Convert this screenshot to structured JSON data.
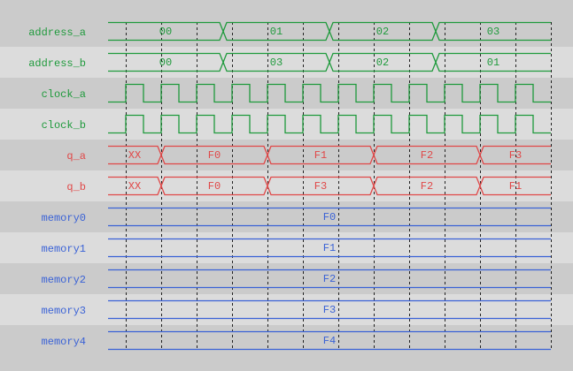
{
  "colors": {
    "band_dark": "#cbcbcb",
    "band_light": "#dcdcdc",
    "grid": "#222222"
  },
  "time": {
    "start": 0,
    "end": 25,
    "gridlines": [
      1,
      3,
      5,
      7,
      9,
      11,
      13,
      15,
      17,
      19,
      21,
      23,
      25
    ]
  },
  "signals": [
    {
      "name": "address_a",
      "type": "bus",
      "color": "#1f9a3c",
      "segments": [
        {
          "from": 0,
          "to": 6.5,
          "value": "00"
        },
        {
          "from": 6.5,
          "to": 12.5,
          "value": "01"
        },
        {
          "from": 12.5,
          "to": 18.5,
          "value": "02"
        },
        {
          "from": 18.5,
          "to": 25,
          "value": "03"
        }
      ]
    },
    {
      "name": "address_b",
      "type": "bus",
      "color": "#1f9a3c",
      "segments": [
        {
          "from": 0,
          "to": 6.5,
          "value": "00"
        },
        {
          "from": 6.5,
          "to": 12.5,
          "value": "03"
        },
        {
          "from": 12.5,
          "to": 18.5,
          "value": "02"
        },
        {
          "from": 18.5,
          "to": 25,
          "value": "01"
        }
      ]
    },
    {
      "name": "clock_a",
      "type": "clock",
      "color": "#1f9a3c",
      "first_rise": 1,
      "period": 2,
      "rises": 12
    },
    {
      "name": "clock_b",
      "type": "clock",
      "color": "#1f9a3c",
      "first_rise": 1,
      "period": 2,
      "rises": 12
    },
    {
      "name": "q_a",
      "type": "bus",
      "color": "#e04848",
      "segments": [
        {
          "from": 0,
          "to": 3,
          "value": "XX"
        },
        {
          "from": 3,
          "to": 9,
          "value": "F0"
        },
        {
          "from": 9,
          "to": 15,
          "value": "F1"
        },
        {
          "from": 15,
          "to": 21,
          "value": "F2"
        },
        {
          "from": 21,
          "to": 25,
          "value": "F3"
        }
      ]
    },
    {
      "name": "q_b",
      "type": "bus",
      "color": "#e04848",
      "segments": [
        {
          "from": 0,
          "to": 3,
          "value": "XX"
        },
        {
          "from": 3,
          "to": 9,
          "value": "F0"
        },
        {
          "from": 9,
          "to": 15,
          "value": "F3"
        },
        {
          "from": 15,
          "to": 21,
          "value": "F2"
        },
        {
          "from": 21,
          "to": 25,
          "value": "F1"
        }
      ]
    },
    {
      "name": "memory0",
      "type": "bus",
      "color": "#3a62d6",
      "segments": [
        {
          "from": 0,
          "to": 25,
          "value": "F0"
        }
      ]
    },
    {
      "name": "memory1",
      "type": "bus",
      "color": "#3a62d6",
      "segments": [
        {
          "from": 0,
          "to": 25,
          "value": "F1"
        }
      ]
    },
    {
      "name": "memory2",
      "type": "bus",
      "color": "#3a62d6",
      "segments": [
        {
          "from": 0,
          "to": 25,
          "value": "F2"
        }
      ]
    },
    {
      "name": "memory3",
      "type": "bus",
      "color": "#3a62d6",
      "segments": [
        {
          "from": 0,
          "to": 25,
          "value": "F3"
        }
      ]
    },
    {
      "name": "memory4",
      "type": "bus",
      "color": "#3a62d6",
      "segments": [
        {
          "from": 0,
          "to": 25,
          "value": "F4"
        }
      ]
    }
  ]
}
